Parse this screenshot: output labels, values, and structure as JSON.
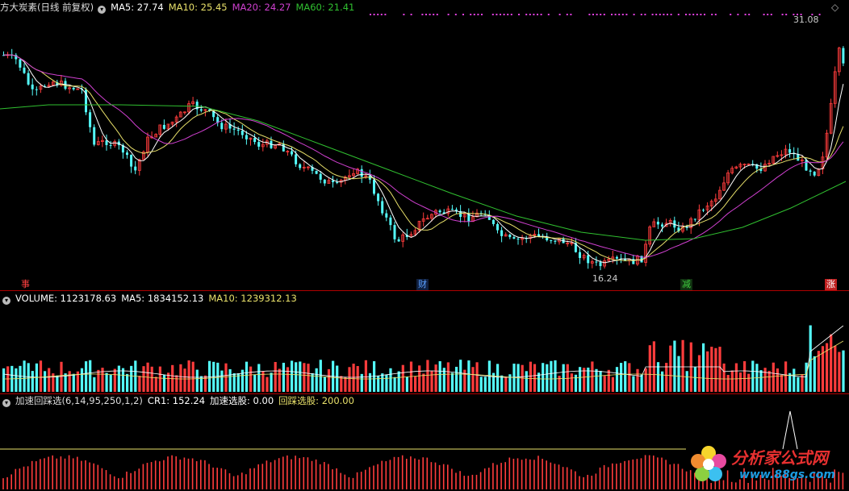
{
  "colors": {
    "ma5": "#ffffff",
    "ma10": "#e8e06a",
    "ma20": "#d040d0",
    "ma60": "#30c030",
    "up": "#ff3c3c",
    "down": "#54fcfc",
    "axis": "#b00000"
  },
  "price_panel": {
    "title": "方大炭素(日线 前复权)",
    "ma5": "MA5: 27.74",
    "ma10": "MA10: 25.45",
    "ma20": "MA20: 24.27",
    "ma60": "MA60: 21.41",
    "high_label": "31.08",
    "low_label": "16.24",
    "markers": [
      "事",
      "财",
      "减",
      "涨"
    ]
  },
  "volume_panel": {
    "volume": "VOLUME: 1123178.63",
    "ma5": "MA5: 1834152.13",
    "ma10": "MA10: 1239312.13"
  },
  "indicator_panel": {
    "name": "加速回踩选(6,14,95,250,1,2)",
    "cr1": "CR1: 152.24",
    "accel": "加速选股: 0.00",
    "pullback": "回踩选股: 200.00"
  },
  "logo": {
    "text": "分析家公式网",
    "url": "www.88gs.com"
  },
  "icons": [
    "settings-circle-icon",
    "diamond-icon",
    "flower-logo-icon"
  ]
}
